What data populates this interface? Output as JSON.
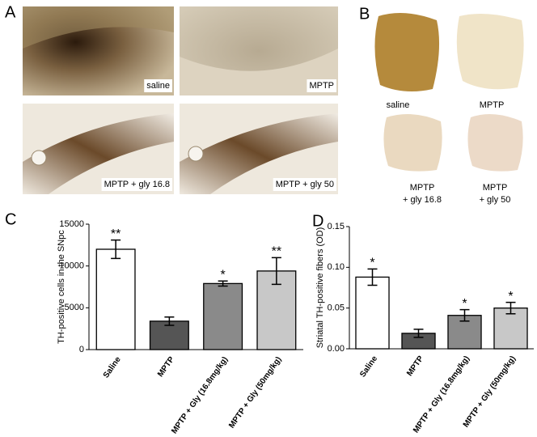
{
  "panels": {
    "A": {
      "letter": "A",
      "images": [
        "saline",
        "MPTP",
        "MPTP + gly 16.8",
        "MPTP + gly 50"
      ]
    },
    "B": {
      "letter": "B",
      "images": [
        [
          "saline"
        ],
        [
          "MPTP"
        ],
        [
          "MPTP",
          "+ gly 16.8"
        ],
        [
          "MPTP",
          "+ gly 50"
        ]
      ]
    },
    "C": {
      "letter": "C"
    },
    "D": {
      "letter": "D"
    }
  },
  "chart_data": [
    {
      "type": "bar",
      "ylabel": "TH-positive cells in the SNpc",
      "categories": [
        "Saline",
        "MPTP",
        "MPTP + Gly (16.8mg/kg)",
        "MPTP + Gly (50mg/kg)"
      ],
      "values": [
        12000,
        3400,
        7900,
        9400
      ],
      "errors": [
        1100,
        500,
        300,
        1600
      ],
      "annotations": [
        "**",
        null,
        "*",
        "**"
      ],
      "colors": [
        "#ffffff",
        "#555555",
        "#8a8a8a",
        "#c8c8c8"
      ],
      "ylim": [
        0,
        15000
      ],
      "yticks": [
        0,
        5000,
        10000,
        15000
      ]
    },
    {
      "type": "bar",
      "ylabel": "Striatal TH-positive fibers (OD)",
      "categories": [
        "Saline",
        "MPTP",
        "MPTP + Gly (16.8mg/kg)",
        "MPTP + Gly (50mg/kg)"
      ],
      "values": [
        0.088,
        0.019,
        0.041,
        0.05
      ],
      "errors": [
        0.01,
        0.005,
        0.007,
        0.007
      ],
      "annotations": [
        "*",
        null,
        "*",
        "*"
      ],
      "colors": [
        "#ffffff",
        "#555555",
        "#8a8a8a",
        "#c8c8c8"
      ],
      "ylim": [
        0,
        0.15
      ],
      "yticks": [
        {
          "value": 0,
          "label": "0.00"
        },
        {
          "value": 0.05,
          "label": "0.05"
        },
        {
          "value": 0.1,
          "label": "0.10"
        },
        {
          "value": 0.15,
          "label": "0.15"
        }
      ]
    }
  ]
}
